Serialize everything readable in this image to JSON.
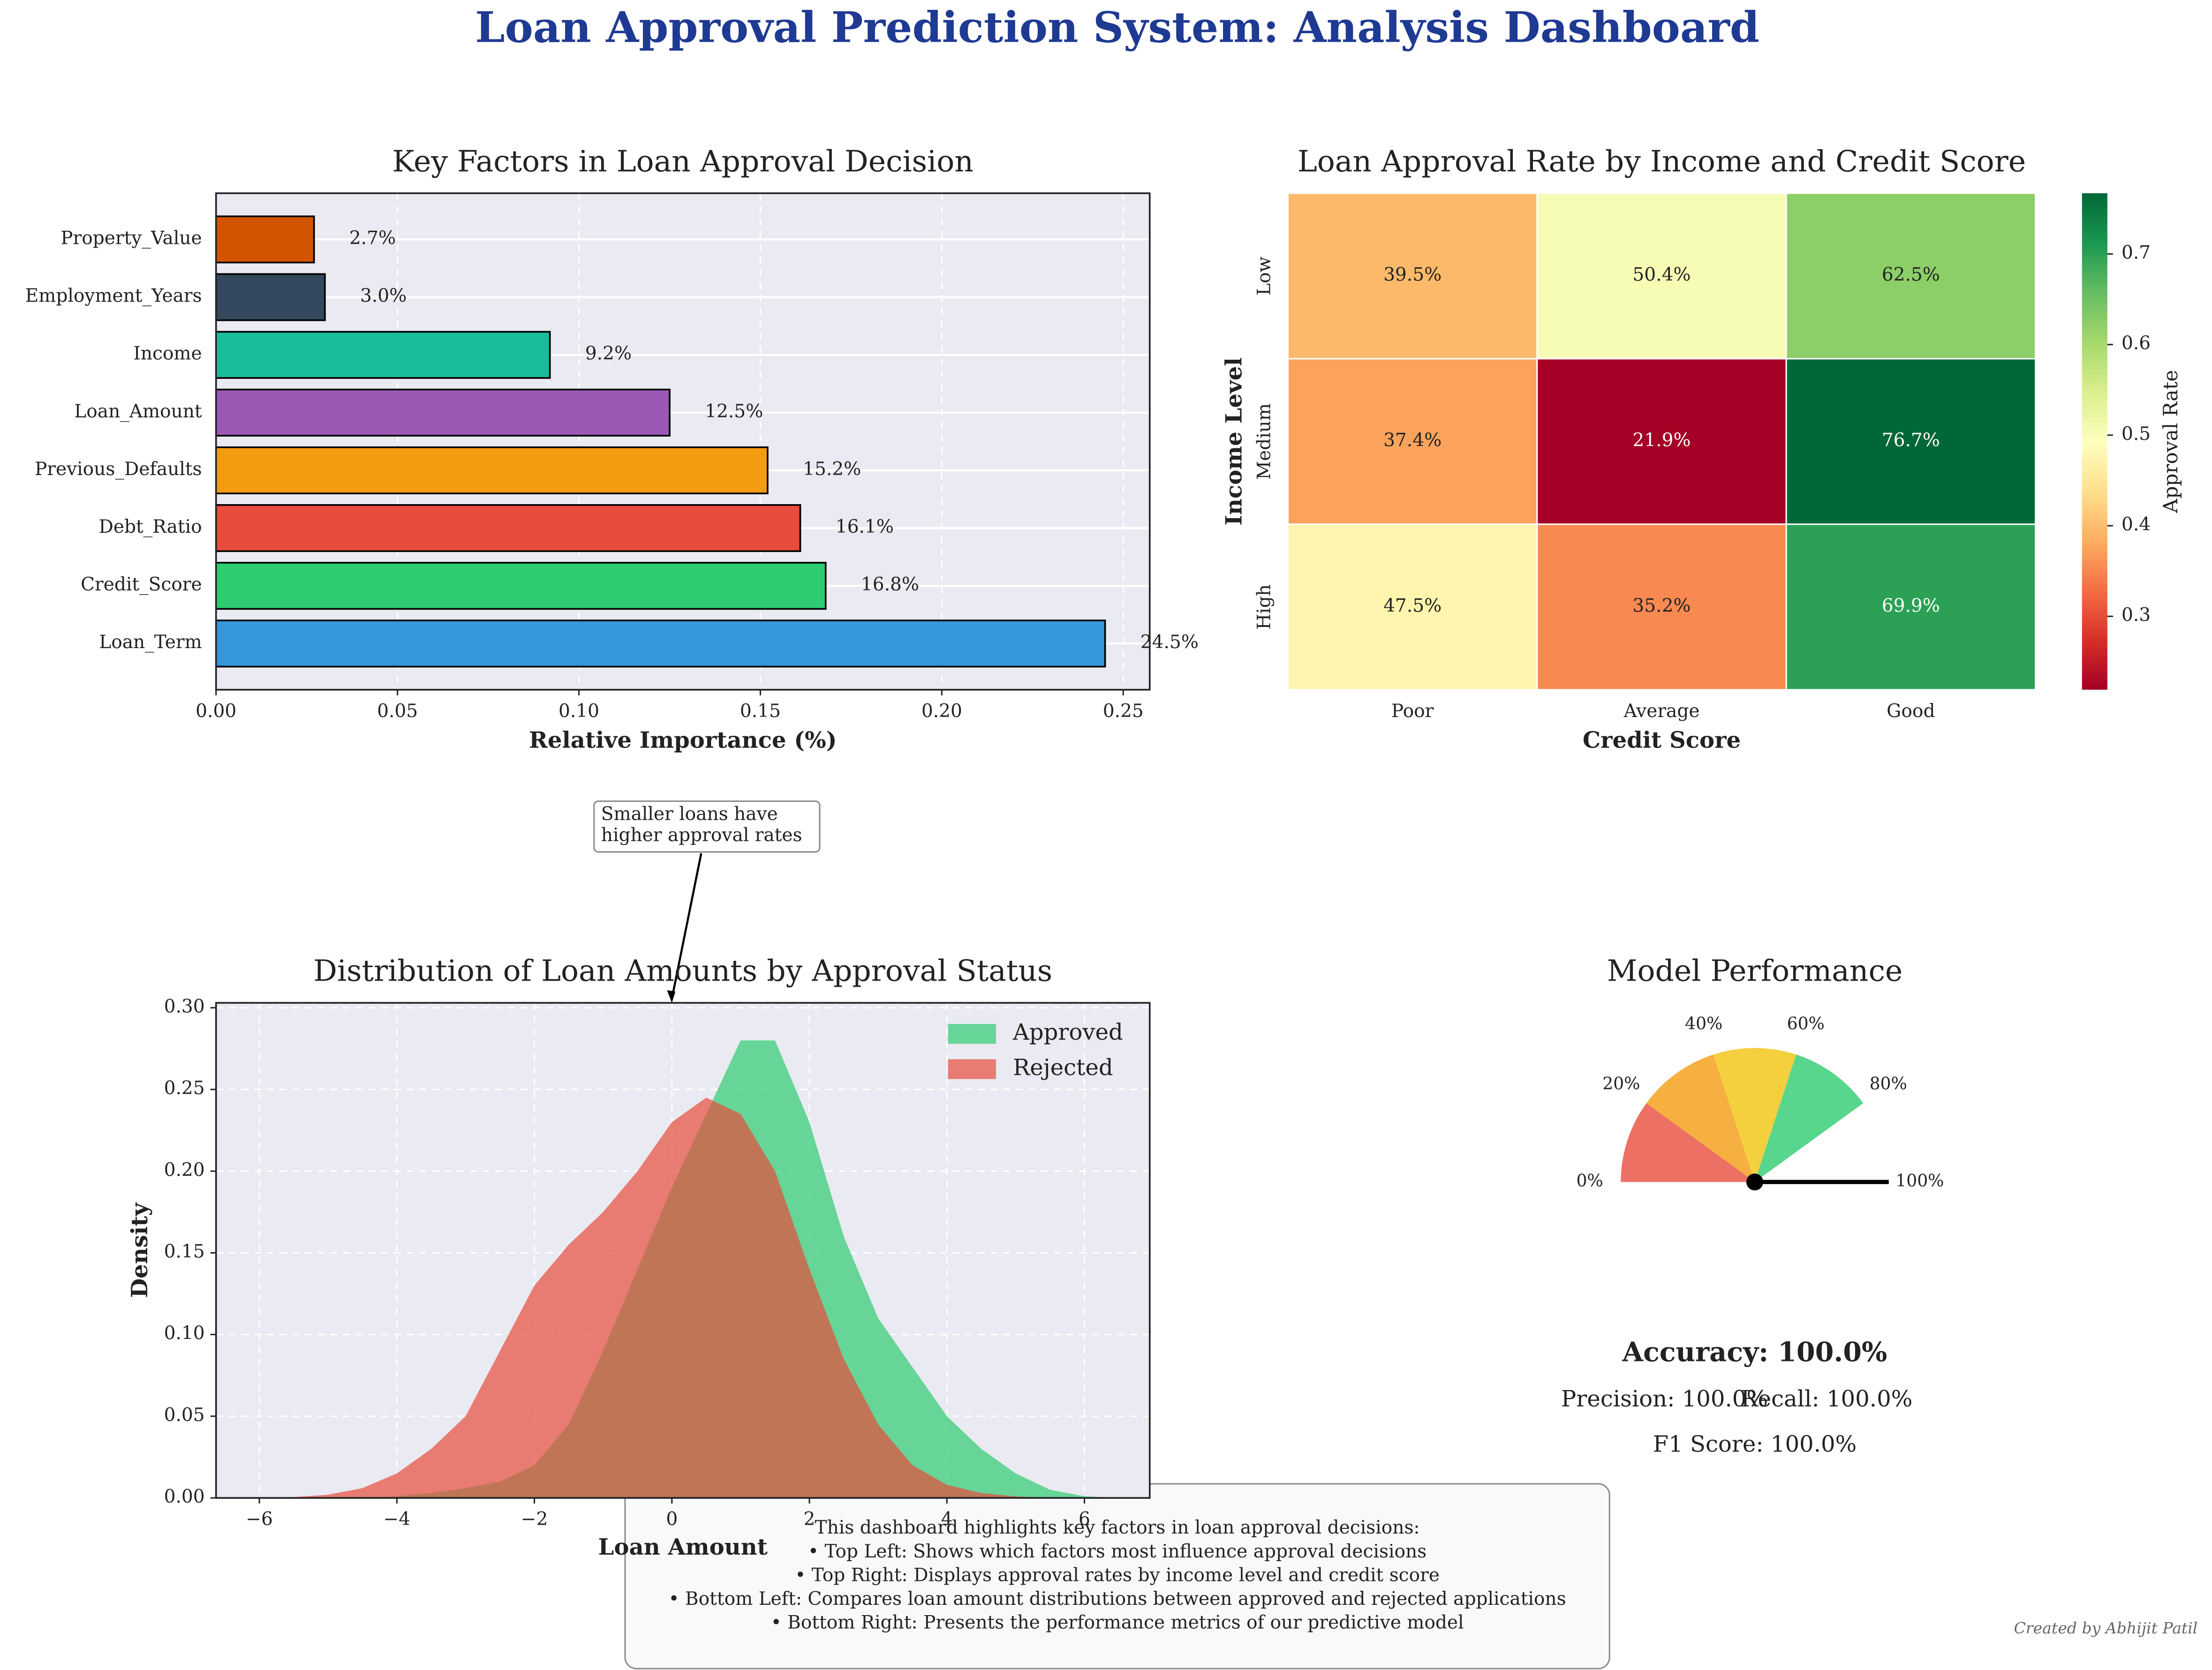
{
  "title": "Loan Approval Prediction System: Analysis Dashboard",
  "notes": [
    "This dashboard highlights key factors in loan approval decisions:",
    "• Top Left: Shows which factors most influence approval decisions",
    "• Top Right: Displays approval rates by income level and credit score",
    "• Bottom Left: Compares loan amount distributions between approved and rejected applications",
    "• Bottom Right: Presents the performance metrics of our predictive model"
  ],
  "credit": "Created by Abhijit Patil",
  "chart_data": [
    {
      "type": "bar",
      "orientation": "horizontal",
      "title": "Key Factors in Loan Approval Decision",
      "xlabel": "Relative Importance (%)",
      "categories": [
        "Loan_Term",
        "Credit_Score",
        "Debt_Ratio",
        "Previous_Defaults",
        "Loan_Amount",
        "Income",
        "Employment_Years",
        "Property_Value"
      ],
      "values": [
        0.245,
        0.168,
        0.161,
        0.152,
        0.125,
        0.092,
        0.03,
        0.027
      ],
      "value_labels": [
        "24.5%",
        "16.8%",
        "16.1%",
        "15.2%",
        "12.5%",
        "9.2%",
        "3.0%",
        "2.7%"
      ],
      "colors": [
        "#3498db",
        "#2ecc71",
        "#e74c3c",
        "#f39c12",
        "#9b59b6",
        "#1abc9c",
        "#34495e",
        "#d35400"
      ],
      "xlim": [
        0,
        0.2573
      ],
      "xticks": [
        {
          "value": 0,
          "label": "0.00"
        },
        {
          "value": 0.05,
          "label": "0.05"
        },
        {
          "value": 0.1,
          "label": "0.10"
        },
        {
          "value": 0.15,
          "label": "0.15"
        },
        {
          "value": 0.2,
          "label": "0.20"
        },
        {
          "value": 0.25,
          "label": "0.25"
        }
      ],
      "grid": true
    },
    {
      "type": "heatmap",
      "title": "Loan Approval Rate by Income and Credit Score",
      "xlabel": "Credit Score",
      "ylabel": "Income Level",
      "columns": [
        "Poor",
        "Average",
        "Good"
      ],
      "rows": [
        "Low",
        "Medium",
        "High"
      ],
      "values": [
        [
          0.395,
          0.504,
          0.625
        ],
        [
          0.374,
          0.219,
          0.767
        ],
        [
          0.475,
          0.352,
          0.699
        ]
      ],
      "value_labels": [
        [
          "39.5%",
          "50.4%",
          "62.5%"
        ],
        [
          "37.4%",
          "21.9%",
          "76.7%"
        ],
        [
          "47.5%",
          "35.2%",
          "69.9%"
        ]
      ],
      "colormap": "RdYlGn",
      "colorbar_label": "Approval Rate",
      "clim": [
        0.219,
        0.767
      ],
      "cticks": [
        0.3,
        0.4,
        0.5,
        0.6,
        0.7
      ]
    },
    {
      "type": "area",
      "title": "Distribution of Loan Amounts by Approval Status",
      "xlabel": "Loan Amount",
      "ylabel": "Density",
      "x": [
        -6,
        -5.5,
        -5,
        -4.5,
        -4,
        -3.5,
        -3,
        -2.5,
        -2,
        -1.5,
        -1,
        -0.5,
        0,
        0.5,
        1,
        1.5,
        2,
        2.5,
        3,
        3.5,
        4,
        4.5,
        5,
        5.5,
        6,
        6.5
      ],
      "series": [
        {
          "name": "Approved",
          "color": "#2ecc71",
          "values": [
            0,
            0,
            0,
            0,
            0.001,
            0.003,
            0.006,
            0.01,
            0.02,
            0.045,
            0.09,
            0.14,
            0.19,
            0.235,
            0.28,
            0.28,
            0.23,
            0.16,
            0.11,
            0.08,
            0.05,
            0.03,
            0.015,
            0.005,
            0.001,
            0
          ]
        },
        {
          "name": "Rejected",
          "color": "#e74c3c",
          "values": [
            0,
            0.0005,
            0.002,
            0.006,
            0.015,
            0.03,
            0.05,
            0.09,
            0.13,
            0.155,
            0.175,
            0.2,
            0.23,
            0.245,
            0.235,
            0.2,
            0.14,
            0.085,
            0.045,
            0.02,
            0.008,
            0.003,
            0.001,
            0,
            0,
            0
          ]
        }
      ],
      "xlim": [
        -6.63,
        6.95
      ],
      "ylim": [
        0,
        0.303
      ],
      "xticks": [
        {
          "value": -6,
          "label": "−6"
        },
        {
          "value": -4,
          "label": "−4"
        },
        {
          "value": -2,
          "label": "−2"
        },
        0,
        2,
        4,
        6
      ],
      "yticks": [
        {
          "value": 0,
          "label": "0.00"
        },
        {
          "value": 0.05,
          "label": "0.05"
        },
        {
          "value": 0.1,
          "label": "0.10"
        },
        {
          "value": 0.15,
          "label": "0.15"
        },
        {
          "value": 0.2,
          "label": "0.20"
        },
        {
          "value": 0.25,
          "label": "0.25"
        },
        {
          "value": 0.3,
          "label": "0.30"
        }
      ],
      "grid": true,
      "legend": "upper right",
      "annotation": [
        "Smaller loans have",
        "higher approval rates"
      ]
    },
    {
      "type": "gauge",
      "title": "Model Performance",
      "lim": [
        0,
        100
      ],
      "segments": [
        {
          "from": 0,
          "to": 20,
          "color": "#e74c3c"
        },
        {
          "from": 20,
          "to": 40,
          "color": "#f39c12"
        },
        {
          "from": 40,
          "to": 60,
          "color": "#f1c40f"
        },
        {
          "from": 60,
          "to": 80,
          "color": "#2ecc71"
        }
      ],
      "ticks": [
        {
          "value": 0,
          "label": "0%"
        },
        {
          "value": 20,
          "label": "20%"
        },
        {
          "value": 40,
          "label": "40%"
        },
        {
          "value": 60,
          "label": "60%"
        },
        {
          "value": 80,
          "label": "80%"
        },
        {
          "value": 100,
          "label": "100%"
        }
      ],
      "value": 100,
      "value_label": "Accuracy: 100.0%",
      "metrics": [
        "Precision: 100.0%",
        "Recall: 100.0%",
        "F1 Score: 100.0%"
      ]
    }
  ]
}
